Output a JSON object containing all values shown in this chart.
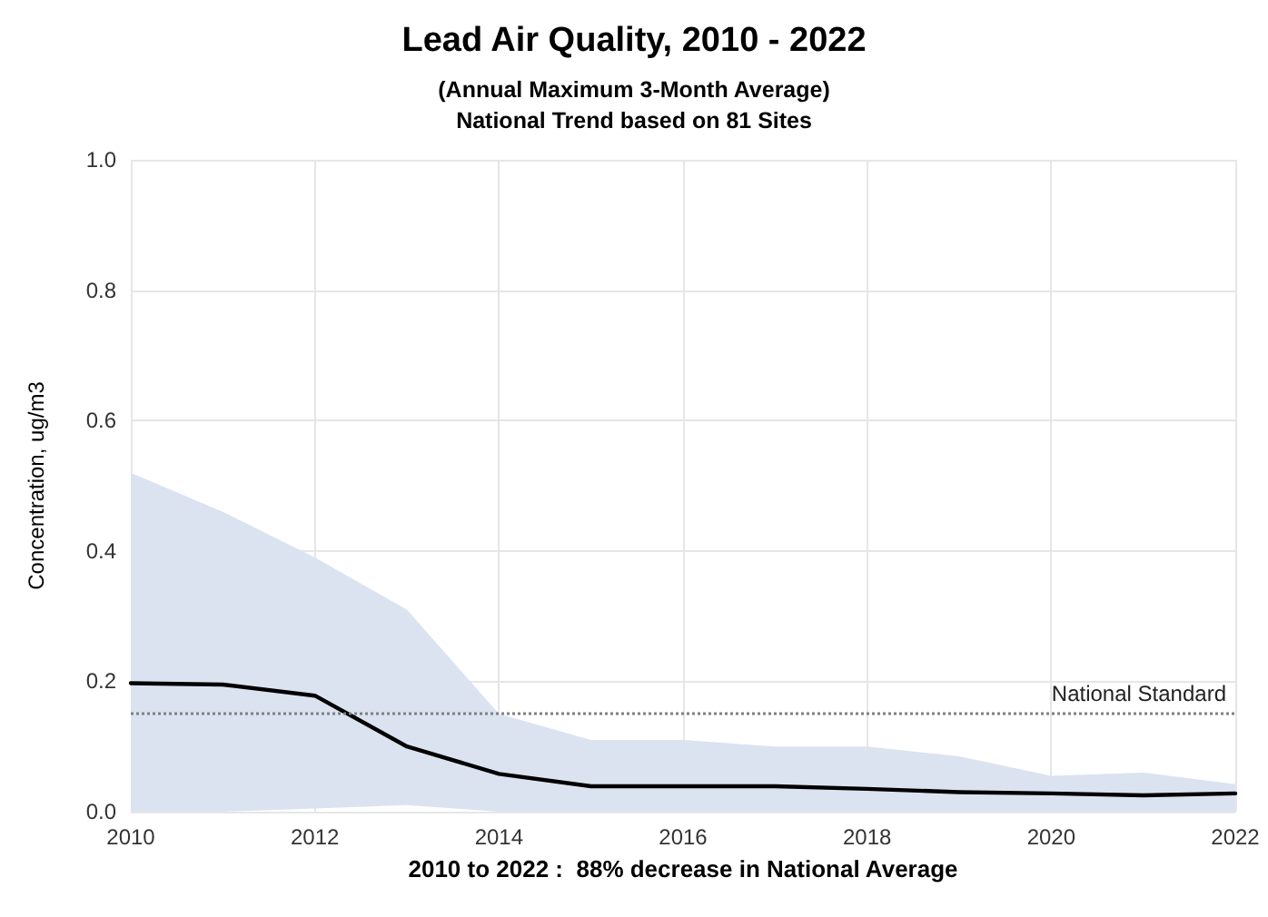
{
  "chart_data": {
    "type": "line",
    "title": "Lead Air Quality, 2010 - 2022",
    "subtitle": "(Annual Maximum 3-Month Average)\nNational Trend based on 81 Sites",
    "xlabel": "2010 to 2022 :  88% decrease in National Average",
    "ylabel": "Concentration, ug/m3",
    "x": [
      2010,
      2011,
      2012,
      2013,
      2014,
      2015,
      2016,
      2017,
      2018,
      2019,
      2020,
      2021,
      2022
    ],
    "series": [
      {
        "color": "#000000",
        "values": [
          0.197,
          0.195,
          0.178,
          0.1,
          0.058,
          0.039,
          0.039,
          0.039,
          0.035,
          0.03,
          0.028,
          0.025,
          0.028
        ],
        "lower": [
          0.0,
          0.0,
          0.005,
          0.01,
          0.0,
          0.0,
          0.0,
          0.0,
          0.0,
          0.0,
          0.0,
          0.0,
          0.0
        ],
        "upper": [
          0.52,
          0.46,
          0.39,
          0.31,
          0.15,
          0.11,
          0.11,
          0.1,
          0.1,
          0.085,
          0.055,
          0.06,
          0.042
        ]
      }
    ],
    "xlim": [
      2010,
      2022
    ],
    "xticks": [
      2010,
      2012,
      2014,
      2016,
      2018,
      2020,
      2022
    ],
    "ylim": [
      0,
      1
    ],
    "yticks": [
      {
        "value": 0,
        "label": "0.0"
      },
      {
        "value": 0.2,
        "label": "0.2"
      },
      {
        "value": 0.4,
        "label": "0.4"
      },
      {
        "value": 0.6,
        "label": "0.6"
      },
      {
        "value": 0.8,
        "label": "0.8"
      },
      {
        "value": 1,
        "label": "1.0"
      }
    ],
    "ref_lines": [
      {
        "axis": "y",
        "value": 0.15,
        "label": "National Standard",
        "color": "#808080",
        "line_style": "dotted"
      }
    ],
    "grid": true,
    "marker": "none",
    "line_style": "solid"
  }
}
